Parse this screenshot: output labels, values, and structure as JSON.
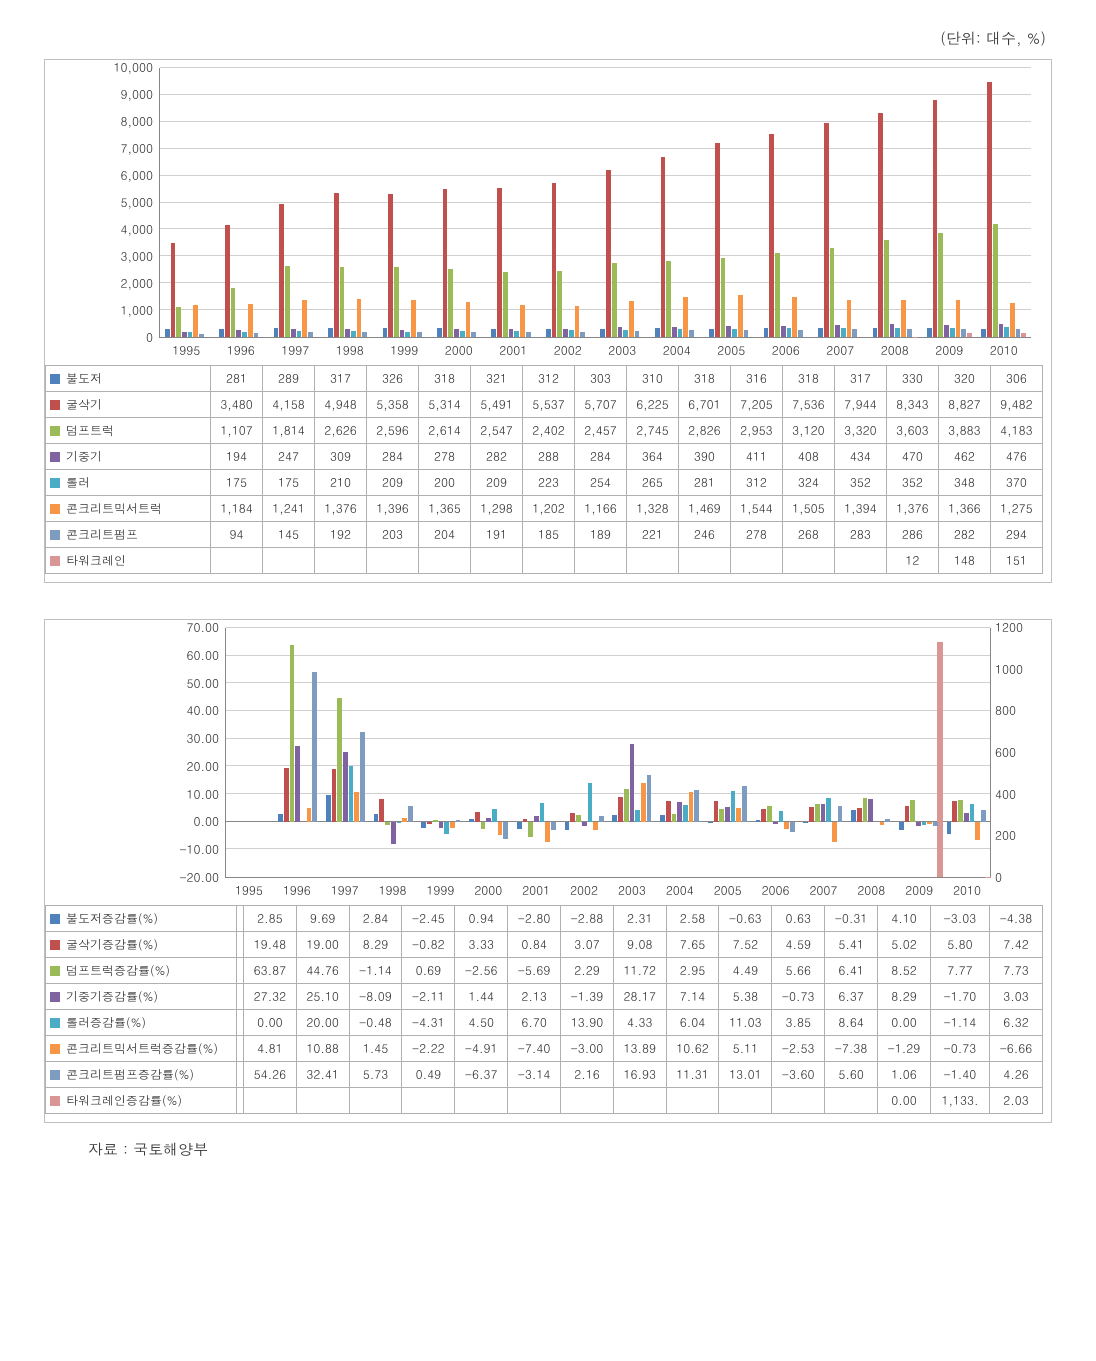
{
  "unit_label": "(단위: 대수, %)",
  "source_label": "자료 : 국토해양부",
  "colors": {
    "grid": "#d0d0d0",
    "axis": "#868686",
    "series": {
      "bulldozer": "#4f81bd",
      "excavator": "#c0504d",
      "dumptruck": "#9bbb59",
      "crane": "#8064a2",
      "roller": "#4bacc6",
      "mixertruck": "#f79646",
      "pump": "#7e9bc0",
      "towercrane": "#d99694"
    }
  },
  "years": [
    "1995",
    "1996",
    "1997",
    "1998",
    "1999",
    "2000",
    "2001",
    "2002",
    "2003",
    "2004",
    "2005",
    "2006",
    "2007",
    "2008",
    "2009",
    "2010"
  ],
  "chart1": {
    "type": "grouped-bar",
    "ylim": [
      0,
      10000
    ],
    "ytick_step": 1000,
    "y_format": "comma",
    "bg": "#ffffff",
    "series_order": [
      "bulldozer",
      "excavator",
      "dumptruck",
      "crane",
      "roller",
      "mixertruck",
      "pump",
      "towercrane"
    ],
    "series": {
      "bulldozer": {
        "label": "불도저",
        "values": [
          281,
          289,
          317,
          326,
          318,
          321,
          312,
          303,
          310,
          318,
          316,
          318,
          317,
          330,
          320,
          306
        ]
      },
      "excavator": {
        "label": "굴삭기",
        "values": [
          3480,
          4158,
          4948,
          5358,
          5314,
          5491,
          5537,
          5707,
          6225,
          6701,
          7205,
          7536,
          7944,
          8343,
          8827,
          9482
        ]
      },
      "dumptruck": {
        "label": "덤프트럭",
        "values": [
          1107,
          1814,
          2626,
          2596,
          2614,
          2547,
          2402,
          2457,
          2745,
          2826,
          2953,
          3120,
          3320,
          3603,
          3883,
          4183
        ]
      },
      "crane": {
        "label": "기중기",
        "values": [
          194,
          247,
          309,
          284,
          278,
          282,
          288,
          284,
          364,
          390,
          411,
          408,
          434,
          470,
          462,
          476
        ]
      },
      "roller": {
        "label": "롤러",
        "values": [
          175,
          175,
          210,
          209,
          200,
          209,
          223,
          254,
          265,
          281,
          312,
          324,
          352,
          352,
          348,
          370
        ]
      },
      "mixertruck": {
        "label": "콘크리트믹서트럭",
        "values": [
          1184,
          1241,
          1376,
          1396,
          1365,
          1298,
          1202,
          1166,
          1328,
          1469,
          1544,
          1505,
          1394,
          1376,
          1366,
          1275
        ]
      },
      "pump": {
        "label": "콘크리트펌프",
        "values": [
          94,
          145,
          192,
          203,
          204,
          191,
          185,
          189,
          221,
          246,
          278,
          268,
          283,
          286,
          282,
          294
        ]
      },
      "towercrane": {
        "label": "타워크레인",
        "values": [
          null,
          null,
          null,
          null,
          null,
          null,
          null,
          null,
          null,
          null,
          null,
          null,
          null,
          12,
          148,
          151
        ]
      }
    }
  },
  "chart2": {
    "type": "grouped-bar-dual-axis",
    "ylim_left": [
      -20,
      70
    ],
    "ytick_left_step": 10,
    "ylim_right": [
      0,
      1200
    ],
    "ytick_right_step": 200,
    "bg": "#ffffff",
    "series_order": [
      "bulldozer",
      "excavator",
      "dumptruck",
      "crane",
      "roller",
      "mixertruck",
      "pump",
      "towercrane"
    ],
    "series": {
      "bulldozer": {
        "label": "불도저증감률(%)",
        "values": [
          null,
          2.85,
          9.69,
          2.84,
          -2.45,
          0.94,
          -2.8,
          -2.88,
          2.31,
          2.58,
          -0.63,
          0.63,
          -0.31,
          4.1,
          -3.03,
          -4.38
        ]
      },
      "excavator": {
        "label": "굴삭기증감률(%)",
        "values": [
          null,
          19.48,
          19.0,
          8.29,
          -0.82,
          3.33,
          0.84,
          3.07,
          9.08,
          7.65,
          7.52,
          4.59,
          5.41,
          5.02,
          5.8,
          7.42
        ]
      },
      "dumptruck": {
        "label": "덤프트럭증감률(%)",
        "values": [
          null,
          63.87,
          44.76,
          -1.14,
          0.69,
          -2.56,
          -5.69,
          2.29,
          11.72,
          2.95,
          4.49,
          5.66,
          6.41,
          8.52,
          7.77,
          7.73
        ]
      },
      "crane": {
        "label": "기중기증감률(%)",
        "values": [
          null,
          27.32,
          25.1,
          -8.09,
          -2.11,
          1.44,
          2.13,
          -1.39,
          28.17,
          7.14,
          5.38,
          -0.73,
          6.37,
          8.29,
          -1.7,
          3.03
        ]
      },
      "roller": {
        "label": "롤러증감률(%)",
        "values": [
          null,
          0.0,
          20.0,
          -0.48,
          -4.31,
          4.5,
          6.7,
          13.9,
          4.33,
          6.04,
          11.03,
          3.85,
          8.64,
          0.0,
          -1.14,
          6.32
        ]
      },
      "mixertruck": {
        "label": "콘크리트믹서트럭증감률(%)",
        "values": [
          null,
          4.81,
          10.88,
          1.45,
          -2.22,
          -4.91,
          -7.4,
          -3.0,
          13.89,
          10.62,
          5.11,
          -2.53,
          -7.38,
          -1.29,
          -0.73,
          -6.66
        ]
      },
      "pump": {
        "label": "콘크리트펌프증감률(%)",
        "values": [
          null,
          54.26,
          32.41,
          5.73,
          0.49,
          -6.37,
          -3.14,
          2.16,
          16.93,
          11.31,
          13.01,
          -3.6,
          5.6,
          1.06,
          -1.4,
          4.26
        ]
      },
      "towercrane": {
        "label": "타워크레인증감률(%)",
        "axis": "right",
        "values": [
          null,
          null,
          null,
          null,
          null,
          null,
          null,
          null,
          null,
          null,
          null,
          null,
          null,
          0.0,
          1133.33,
          2.03
        ],
        "display_values": [
          null,
          null,
          null,
          null,
          null,
          null,
          null,
          null,
          null,
          null,
          null,
          null,
          null,
          "0.00",
          "1,133.",
          "2.03"
        ]
      }
    }
  }
}
